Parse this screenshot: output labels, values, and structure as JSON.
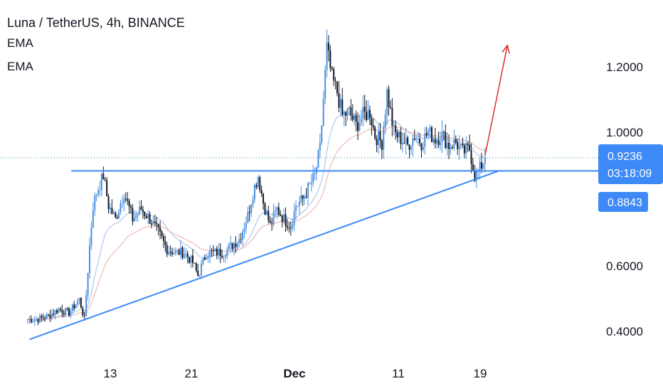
{
  "header": {
    "title": "Luna / TetherUS, 4h, BINANCE",
    "indicators": [
      "EMA",
      "EMA"
    ]
  },
  "price_tags": {
    "last_price": "0.9236",
    "countdown": "03:18:09",
    "line_price": "0.8843"
  },
  "colors": {
    "candle_up": "#4a90e2",
    "candle_down": "#131722",
    "trendline": "#3d8af7",
    "ema_fast": "#bcd3f2",
    "ema_slow": "#f3c6c6",
    "arrow": "#d92e2e",
    "tag_bg": "#3d8af7",
    "last_price_line": "#2a8f9c"
  },
  "chart_data": {
    "type": "candlestick",
    "title": "Luna / TetherUS, 4h, BINANCE",
    "y_ticks": [
      "1.2000",
      "1.0000",
      "0.6000",
      "0.4000"
    ],
    "x_ticks": [
      "13",
      "21",
      "Dec",
      "11",
      "19"
    ],
    "ylim": [
      0.32,
      1.33
    ],
    "keypoints": [
      [
        "Nov 5 00:00",
        0.44
      ],
      [
        "Nov 6 00:00",
        0.44
      ],
      [
        "Nov 7 00:00",
        0.45
      ],
      [
        "Nov 8 00:00",
        0.47
      ],
      [
        "Nov 9 00:00",
        0.46
      ],
      [
        "Nov 10 00:00",
        0.5
      ],
      [
        "Nov 10 12:00",
        0.44
      ],
      [
        "Nov 11 00:00",
        0.66
      ],
      [
        "Nov 11 08:00",
        0.78
      ],
      [
        "Nov 11 16:00",
        0.82
      ],
      [
        "Nov 12 08:00",
        0.87
      ],
      [
        "Nov 12 20:00",
        0.78
      ],
      [
        "Nov 13 12:00",
        0.74
      ],
      [
        "Nov 14 08:00",
        0.82
      ],
      [
        "Nov 15 04:00",
        0.74
      ],
      [
        "Nov 16 00:00",
        0.77
      ],
      [
        "Nov 16 20:00",
        0.74
      ],
      [
        "Nov 17 16:00",
        0.7
      ],
      [
        "Nov 18 12:00",
        0.65
      ],
      [
        "Nov 19 08:00",
        0.64
      ],
      [
        "Nov 20 04:00",
        0.64
      ],
      [
        "Nov 21 00:00",
        0.61
      ],
      [
        "Nov 21 12:00",
        0.57
      ],
      [
        "Nov 22 08:00",
        0.64
      ],
      [
        "Nov 24 00:00",
        0.64
      ],
      [
        "Nov 25 12:00",
        0.68
      ],
      [
        "Nov 26 08:00",
        0.75
      ],
      [
        "Nov 26 20:00",
        0.82
      ],
      [
        "Nov 27 08:00",
        0.87
      ],
      [
        "Nov 27 20:00",
        0.79
      ],
      [
        "Nov 28 12:00",
        0.72
      ],
      [
        "Nov 29 04:00",
        0.77
      ],
      [
        "Nov 29 20:00",
        0.74
      ],
      [
        "Nov 30 12:00",
        0.72
      ],
      [
        "Dec 1 00:00",
        0.78
      ],
      [
        "Dec 1 16:00",
        0.8
      ],
      [
        "Dec 2 08:00",
        0.84
      ],
      [
        "Dec 2 20:00",
        0.87
      ],
      [
        "Dec 3 08:00",
        0.95
      ],
      [
        "Dec 3 16:00",
        1.1
      ],
      [
        "Dec 4 00:00",
        1.25
      ],
      [
        "Dec 4 12:00",
        1.16
      ],
      [
        "Dec 5 00:00",
        1.12
      ],
      [
        "Dec 5 12:00",
        1.05
      ],
      [
        "Dec 6 04:00",
        1.06
      ],
      [
        "Dec 6 20:00",
        1.02
      ],
      [
        "Dec 7 12:00",
        1.05
      ],
      [
        "Dec 8 04:00",
        1.06
      ],
      [
        "Dec 8 16:00",
        0.99
      ],
      [
        "Dec 9 08:00",
        0.97
      ],
      [
        "Dec 9 20:00",
        1.12
      ],
      [
        "Dec 10 12:00",
        1.0
      ],
      [
        "Dec 11 04:00",
        0.98
      ],
      [
        "Dec 11 20:00",
        0.96
      ],
      [
        "Dec 12 12:00",
        0.99
      ],
      [
        "Dec 13 04:00",
        0.97
      ],
      [
        "Dec 13 20:00",
        1.0
      ],
      [
        "Dec 14 12:00",
        0.98
      ],
      [
        "Dec 15 04:00",
        0.99
      ],
      [
        "Dec 15 20:00",
        0.96
      ],
      [
        "Dec 16 12:00",
        0.97
      ],
      [
        "Dec 17 04:00",
        0.94
      ],
      [
        "Dec 17 20:00",
        0.95
      ],
      [
        "Dec 18 08:00",
        0.87
      ],
      [
        "Dec 18 20:00",
        0.89
      ],
      [
        "Dec 19 08:00",
        0.9236
      ]
    ],
    "annotations": {
      "horizontal_level": 0.8843,
      "trendline": [
        [
          "Nov 5 04:00",
          0.38
        ],
        [
          "Dec 20 16:00",
          0.8843
        ]
      ],
      "projection_arrow": [
        [
          "Dec 19 08:00",
          0.93
        ],
        [
          "Dec 21 12:00",
          1.26
        ]
      ]
    },
    "ema_series": [
      "fast",
      "slow"
    ]
  }
}
